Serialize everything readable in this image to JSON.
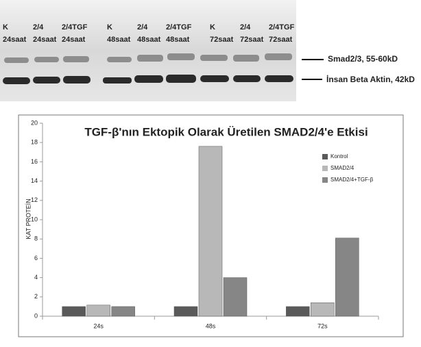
{
  "blot": {
    "lanes": [
      {
        "name": "K",
        "time": "24saat"
      },
      {
        "name": "2/4",
        "time": "24saat"
      },
      {
        "name": "2/4TGF",
        "time": "24saat"
      },
      {
        "name": "K",
        "time": "48saat"
      },
      {
        "name": "2/4",
        "time": "48saat"
      },
      {
        "name": "2/4TGF",
        "time": "48saat"
      },
      {
        "name": "K",
        "time": "72saat"
      },
      {
        "name": "2/4",
        "time": "72saat"
      },
      {
        "name": "2/4TGF",
        "time": "72saat"
      }
    ],
    "bands": [
      "Smad2/3, 55-60kD",
      "İnsan Beta Aktin, 42kD"
    ]
  },
  "chart_data": {
    "type": "bar",
    "title": "TGF-β'nın Ektopik Olarak Üretilen SMAD2/4'e Etkisi",
    "y_label": "KAT PROTEİN",
    "categories": [
      "24s",
      "48s",
      "72s"
    ],
    "series": [
      {
        "name": "Kontrol",
        "color": "#5a5a5a",
        "values": [
          1,
          1,
          1
        ]
      },
      {
        "name": "SMAD2/4",
        "color": "#b8b8b8",
        "values": [
          1.15,
          17.6,
          1.4
        ]
      },
      {
        "name": "SMAD2/4+TGF-β",
        "color": "#868686",
        "values": [
          1,
          4,
          8.1
        ]
      }
    ],
    "ylim": [
      0,
      20
    ],
    "yticks": [
      0,
      2,
      4,
      6,
      8,
      10,
      12,
      14,
      16,
      18,
      20
    ],
    "grid": false,
    "legend": "top-right"
  }
}
